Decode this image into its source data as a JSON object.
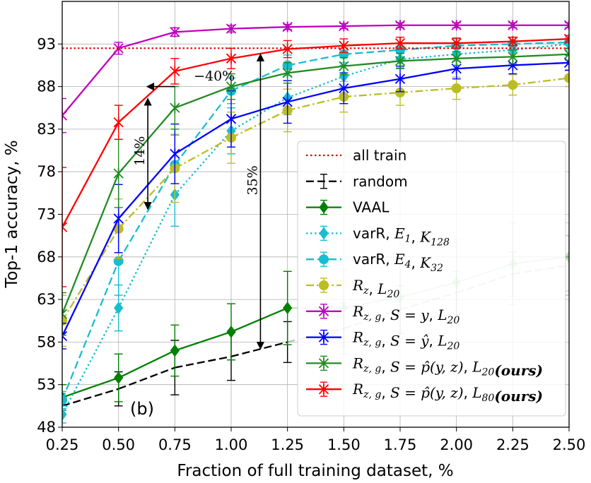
{
  "chart_data": {
    "type": "line",
    "panel_label": "(b)",
    "xlabel": "Fraction of full training dataset, %",
    "ylabel": "Top-1 accuracy, %",
    "xlim": [
      0.25,
      2.5
    ],
    "ylim": [
      48,
      98
    ],
    "xticks": [
      "0.25",
      "0.50",
      "0.75",
      "1.00",
      "1.25",
      "1.50",
      "1.75",
      "2.00",
      "2.25",
      "2.50"
    ],
    "yticks": [
      "48",
      "53",
      "58",
      "63",
      "68",
      "73",
      "78",
      "83",
      "88",
      "93"
    ],
    "grid": true,
    "legend_position": "lower-right",
    "reference_line": {
      "name": "all train",
      "y": 92.5,
      "color": "#e60000"
    },
    "series": [
      {
        "name": "random",
        "color": "#000000",
        "style": "dashed",
        "marker": "none",
        "x": [
          0.25,
          0.5,
          0.75,
          1.0,
          1.25,
          1.5,
          1.75,
          2.0,
          2.25,
          2.5
        ],
        "y": [
          50.5,
          52.5,
          55.0,
          56.3,
          58.0,
          59.6,
          61.8,
          63.8,
          66.0,
          67.0
        ],
        "err": [
          1.0,
          2.0,
          3.2,
          2.8,
          2.4,
          3.0,
          2.8,
          2.5,
          2.6,
          3.5
        ],
        "faded_from_x": 1.4
      },
      {
        "name": "VAAL",
        "color": "#008000",
        "style": "solid",
        "marker": "diamond",
        "x": [
          0.25,
          0.5,
          0.75,
          1.0,
          1.25,
          1.5,
          1.75,
          2.0,
          2.25,
          2.5
        ],
        "y": [
          51.5,
          53.8,
          57.0,
          59.2,
          62.0,
          62.0,
          63.3,
          65.0,
          67.2,
          68.0
        ],
        "err": [
          1.5,
          2.8,
          3.0,
          3.3,
          4.3,
          4.5,
          5.0,
          5.0,
          4.8,
          4.0
        ],
        "faded_from_x": 1.4
      },
      {
        "name": "varR, E1, K128",
        "color": "#17becf",
        "style": "dotted",
        "marker": "diamond",
        "x": [
          0.25,
          0.5,
          0.75,
          1.0,
          1.25,
          1.5,
          1.75,
          2.0,
          2.25,
          2.5
        ],
        "y": [
          49.5,
          62.0,
          75.3,
          82.8,
          86.7,
          89.2,
          91.2,
          91.8,
          92.3,
          93.0
        ],
        "err": [
          1.0,
          2.7,
          3.7,
          2.7,
          2.0,
          1.3,
          1.0,
          0.8,
          0.8,
          0.8
        ]
      },
      {
        "name": "varR, E4, K32",
        "color": "#17becf",
        "style": "dashed",
        "marker": "circle",
        "x": [
          0.25,
          0.5,
          0.75,
          1.0,
          1.25,
          1.5,
          1.75,
          2.0,
          2.25,
          2.5
        ],
        "y": [
          51.2,
          67.5,
          78.8,
          87.5,
          90.5,
          91.8,
          92.3,
          92.8,
          93.0,
          93.2
        ],
        "err": [
          1.0,
          4.0,
          3.5,
          1.5,
          1.2,
          1.0,
          0.8,
          0.8,
          0.8,
          0.8
        ]
      },
      {
        "name": "Rz, L20",
        "color": "#bcbd22",
        "style": "dashdot",
        "marker": "circle",
        "x": [
          0.25,
          0.5,
          0.75,
          1.0,
          1.25,
          1.5,
          1.75,
          2.0,
          2.25,
          2.5
        ],
        "y": [
          60.5,
          71.3,
          78.4,
          82.0,
          85.2,
          86.8,
          87.3,
          87.8,
          88.2,
          89.0
        ],
        "err": [
          3.0,
          3.5,
          4.0,
          3.0,
          2.5,
          1.8,
          1.5,
          1.3,
          1.2,
          1.0
        ]
      },
      {
        "name": "Rz,g, S=y, L20",
        "color": "#bf00bf",
        "style": "solid",
        "marker": "x",
        "x": [
          0.25,
          0.5,
          0.75,
          1.0,
          1.25,
          1.5,
          1.75,
          2.0,
          2.25,
          2.5
        ],
        "y": [
          84.6,
          92.5,
          94.4,
          94.8,
          95.0,
          95.1,
          95.2,
          95.2,
          95.2,
          95.2
        ],
        "err": [
          2.0,
          0.7,
          0.5,
          0.4,
          0.3,
          0.3,
          0.3,
          0.3,
          0.3,
          0.3
        ]
      },
      {
        "name": "Rz,g, S=ŷ, L20",
        "color": "#0000ff",
        "style": "solid",
        "marker": "x",
        "x": [
          0.25,
          0.5,
          0.75,
          1.0,
          1.25,
          1.5,
          1.75,
          2.0,
          2.25,
          2.5
        ],
        "y": [
          58.7,
          72.5,
          80.1,
          84.2,
          86.2,
          87.8,
          88.9,
          90.1,
          90.5,
          90.8
        ],
        "err": [
          1.5,
          4.0,
          3.5,
          3.3,
          2.5,
          1.8,
          1.5,
          1.2,
          1.0,
          0.9
        ]
      },
      {
        "name": "Rz,g, S=p̂(y,z), L20(ours)",
        "color": "#228b22",
        "style": "solid",
        "marker": "x",
        "x": [
          0.25,
          0.5,
          0.75,
          1.0,
          1.25,
          1.5,
          1.75,
          2.0,
          2.25,
          2.5
        ],
        "y": [
          61.3,
          77.8,
          85.5,
          88.0,
          89.6,
          90.4,
          91.0,
          91.3,
          91.5,
          91.8
        ],
        "err": [
          2.5,
          4.0,
          2.5,
          1.5,
          1.2,
          1.0,
          0.9,
          0.8,
          0.8,
          0.7
        ]
      },
      {
        "name": "Rz,g, S=p̂(y,z), L80(ours)",
        "color": "#ff0000",
        "style": "solid",
        "marker": "x",
        "x": [
          0.25,
          0.5,
          0.75,
          1.0,
          1.25,
          1.5,
          1.75,
          2.0,
          2.25,
          2.5
        ],
        "y": [
          71.5,
          83.8,
          89.8,
          91.3,
          92.4,
          92.8,
          93.1,
          93.1,
          93.3,
          93.6
        ],
        "err": [
          7.0,
          2.0,
          1.5,
          1.2,
          1.0,
          0.8,
          0.7,
          0.6,
          0.5,
          0.4
        ]
      }
    ],
    "legend": [
      {
        "label": "all train"
      },
      {
        "label": "random"
      },
      {
        "label": "VAAL"
      },
      {
        "prefix": "varR, ",
        "math": "E",
        "sub": "1",
        "mid": ", ",
        "math2": "K",
        "sub2": "128"
      },
      {
        "prefix": "varR, ",
        "math": "E",
        "sub": "4",
        "mid": ", ",
        "math2": "K",
        "sub2": "32"
      },
      {
        "math": "R",
        "sub": "z",
        "mid": ", ",
        "math2": "L",
        "sub2": "20"
      },
      {
        "math": "R",
        "sub": "z, g",
        "mid": ", ",
        "math2": "S = y",
        "mid2": ", ",
        "math3": "L",
        "sub3": "20"
      },
      {
        "math": "R",
        "sub": "z, g",
        "mid": ", ",
        "math2": "S = ŷ",
        "mid2": ", ",
        "math3": "L",
        "sub3": "20"
      },
      {
        "math": "R",
        "sub": "z, g",
        "mid": ", ",
        "math2": "S = p̂(y, z)",
        "mid2": ", ",
        "math3": "L",
        "sub3": "20",
        "bold": "(ours)"
      },
      {
        "math": "R",
        "sub": "z, g",
        "mid": ", ",
        "math2": "S = p̂(y, z)",
        "mid2": ", ",
        "math3": "L",
        "sub3": "80",
        "bold": "(ours)"
      }
    ],
    "annotations": [
      {
        "text": "−40%",
        "arrow_from": [
          0.75,
          88.0
        ],
        "arrow_to": [
          0.62,
          88.0
        ],
        "text_at": [
          0.95,
          89.2
        ]
      },
      {
        "text": "14%",
        "x": 0.63,
        "y_from": 86.6,
        "y_to": 73.6
      },
      {
        "text": "35%",
        "x": 1.13,
        "y_from": 91.8,
        "y_to": 57.2
      }
    ]
  }
}
